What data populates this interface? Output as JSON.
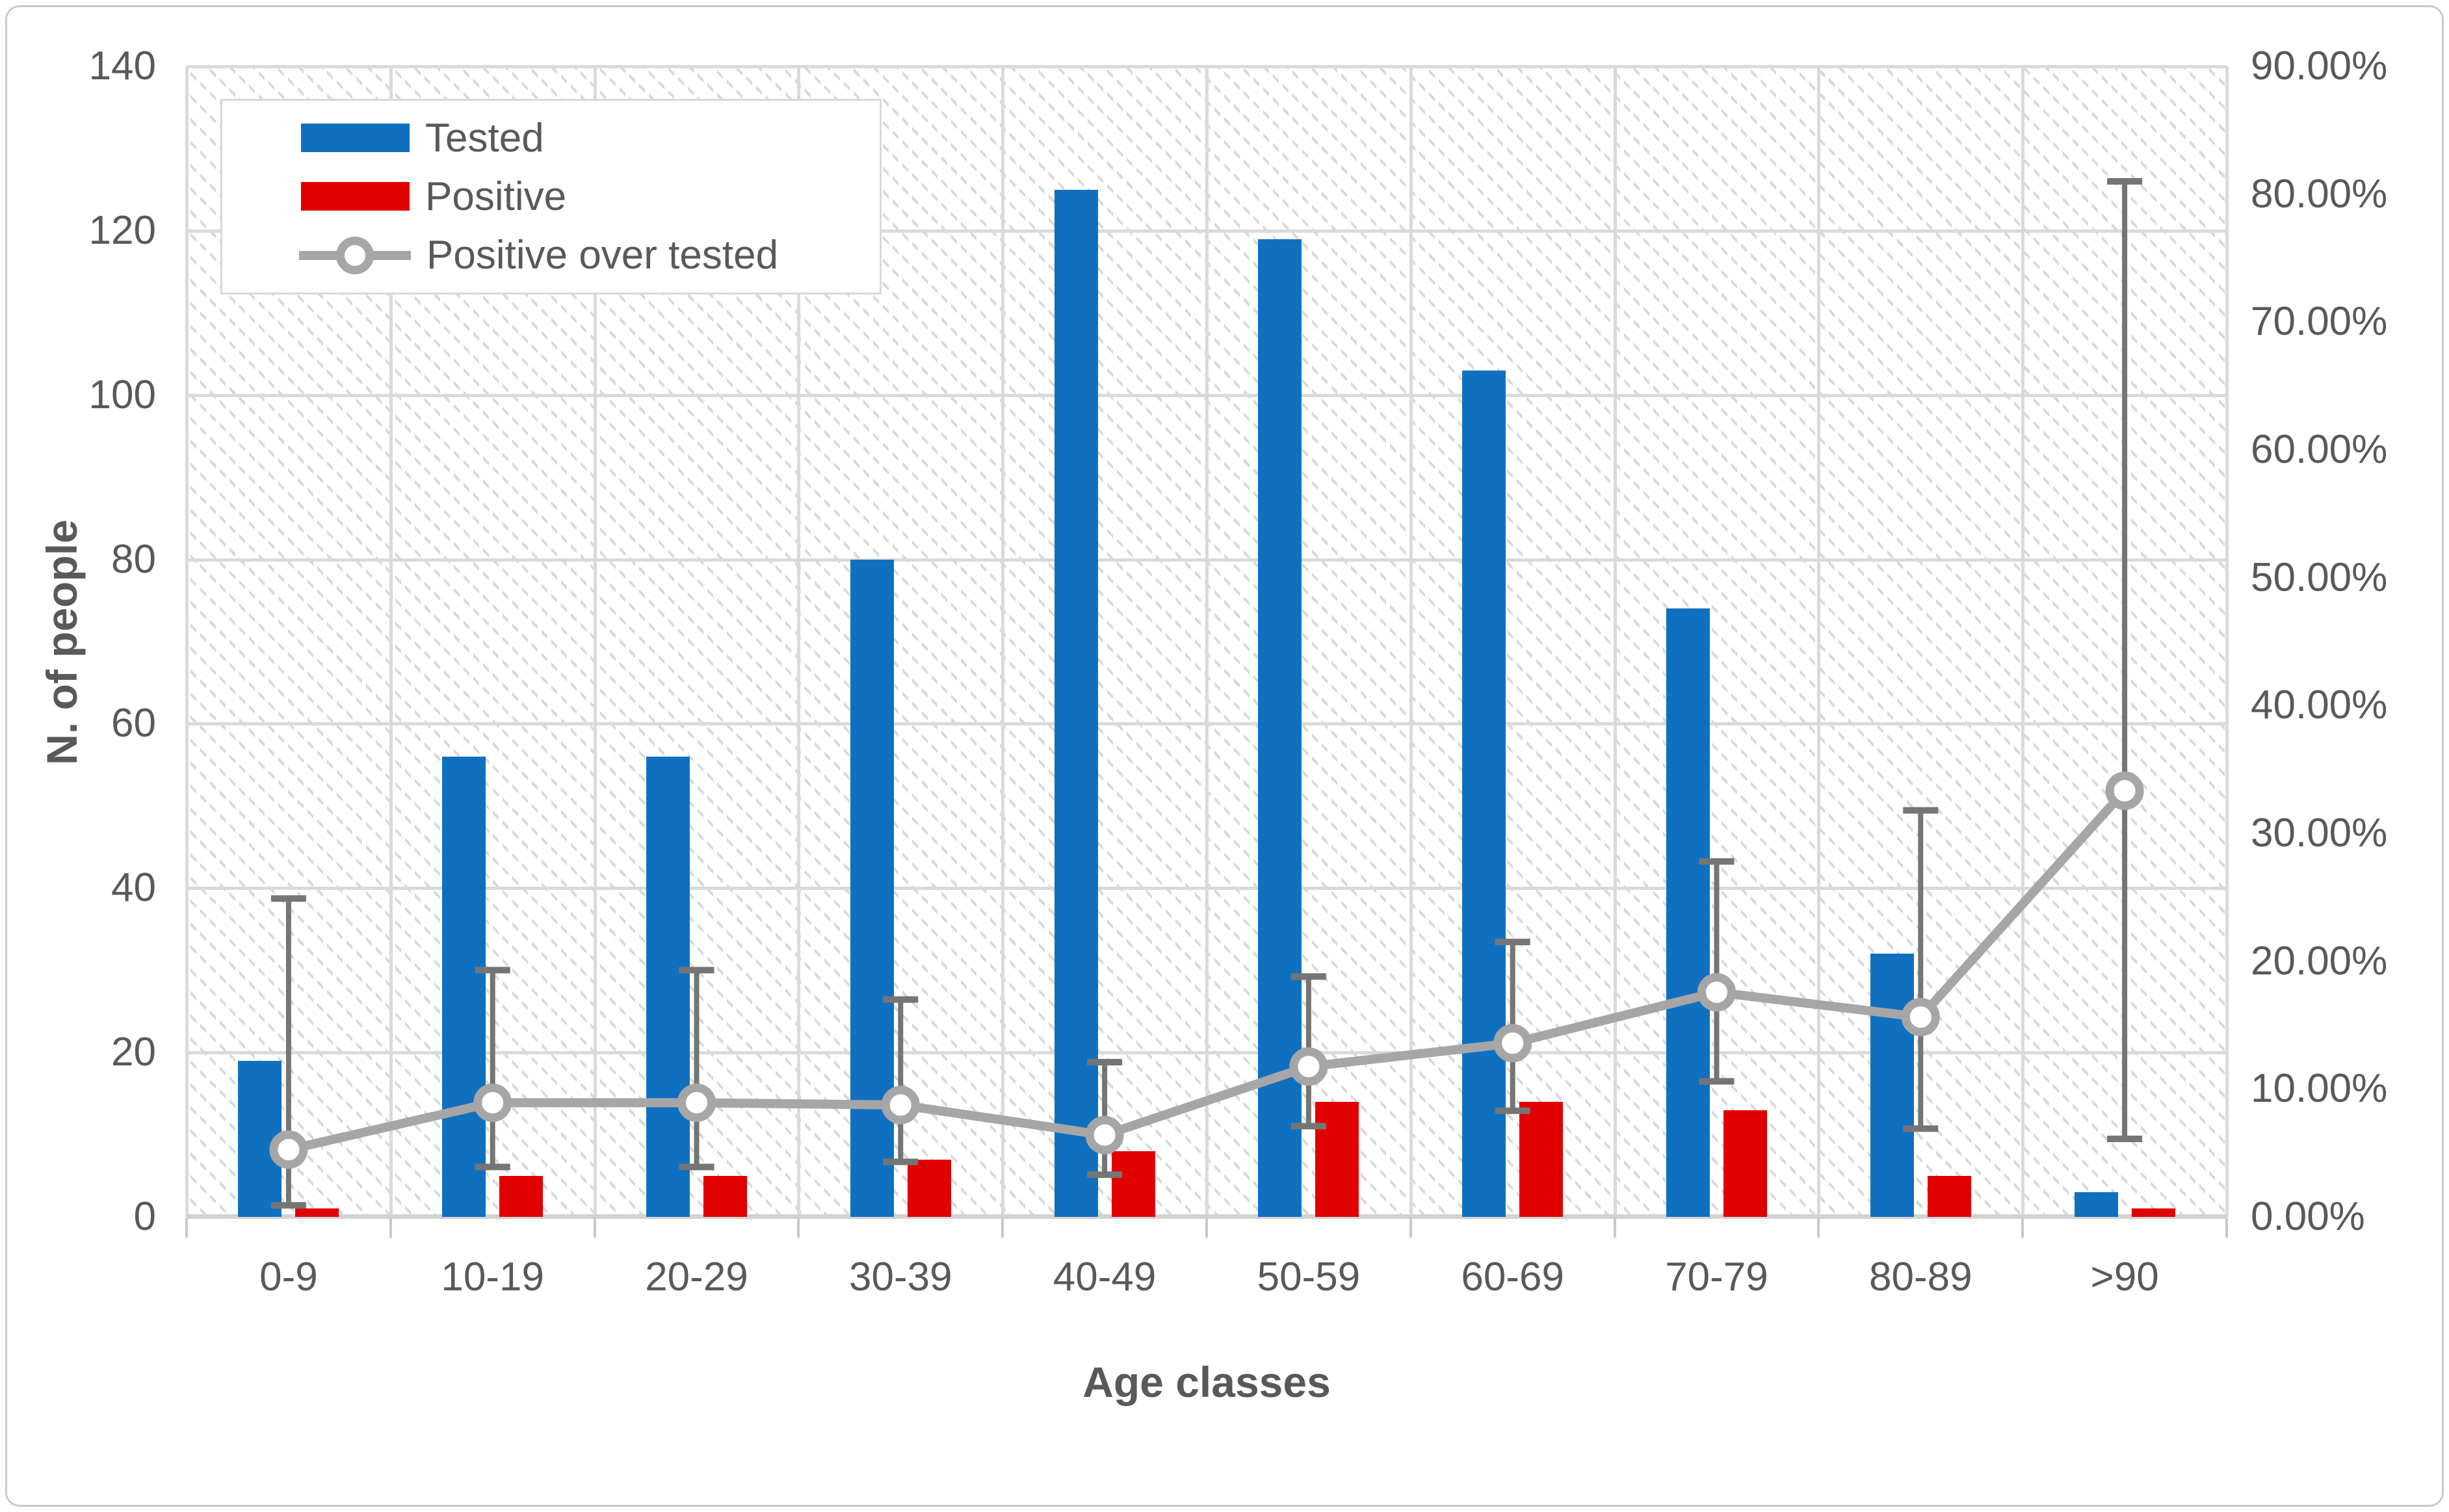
{
  "figure": {
    "legend": {
      "items": [
        {
          "label": "Tested",
          "swatch": "bar",
          "color": "#1070C0"
        },
        {
          "label": "Positive",
          "swatch": "bar",
          "color": "#E00000"
        },
        {
          "label": "Positive over tested",
          "swatch": "line-marker",
          "color": "#A6A6A6"
        }
      ]
    },
    "axes": {
      "left": {
        "title": "N. of people",
        "ticks": [
          "0",
          "20",
          "40",
          "60",
          "80",
          "100",
          "120",
          "140"
        ]
      },
      "right": {
        "ticks": [
          "0.00%",
          "10.00%",
          "20.00%",
          "30.00%",
          "40.00%",
          "50.00%",
          "60.00%",
          "70.00%",
          "80.00%",
          "90.00%"
        ]
      },
      "x": {
        "title": "Age classes"
      }
    }
  },
  "chart_data": {
    "type": "bar",
    "subtype": "grouped-bars-plus-line-with-error-bars-dual-axis",
    "categories": [
      "0-9",
      "10-19",
      "20-29",
      "30-39",
      "40-49",
      "50-59",
      "60-69",
      "70-79",
      "80-89",
      ">90"
    ],
    "series": [
      {
        "name": "Tested",
        "type": "bar",
        "axis": "left",
        "color": "#1070C0",
        "values": [
          19,
          56,
          56,
          80,
          125,
          119,
          103,
          74,
          32,
          3
        ]
      },
      {
        "name": "Positive",
        "type": "bar",
        "axis": "left",
        "color": "#E00000",
        "values": [
          1,
          5,
          5,
          7,
          8,
          14,
          14,
          13,
          5,
          1
        ]
      },
      {
        "name": "Positive over tested",
        "type": "line",
        "axis": "right",
        "color": "#A6A6A6",
        "marker": "circle-white-fill",
        "error_bar_color": "#757575",
        "values_pct": [
          5.26,
          8.93,
          8.93,
          8.75,
          6.4,
          11.76,
          13.59,
          17.57,
          15.63,
          33.33
        ],
        "error_low_pct": [
          0.9,
          3.9,
          3.9,
          4.3,
          3.3,
          7.1,
          8.3,
          10.6,
          6.9,
          6.1
        ],
        "error_high_pct": [
          24.9,
          19.3,
          19.3,
          17.0,
          12.1,
          18.8,
          21.5,
          27.8,
          31.8,
          81.0
        ]
      }
    ],
    "left_axis": {
      "title": "N. of people",
      "min": 0,
      "max": 140,
      "tick_step": 20
    },
    "right_axis": {
      "min_pct": 0,
      "max_pct": 90,
      "tick_step_pct": 10,
      "tick_format": "0.00%"
    },
    "xlabel": "Age classes",
    "grid": true,
    "legend_position": "inside-top-left",
    "plot_background": "diagonal-hatch",
    "grid_color": "#DADADA",
    "text_color": "#595959"
  }
}
